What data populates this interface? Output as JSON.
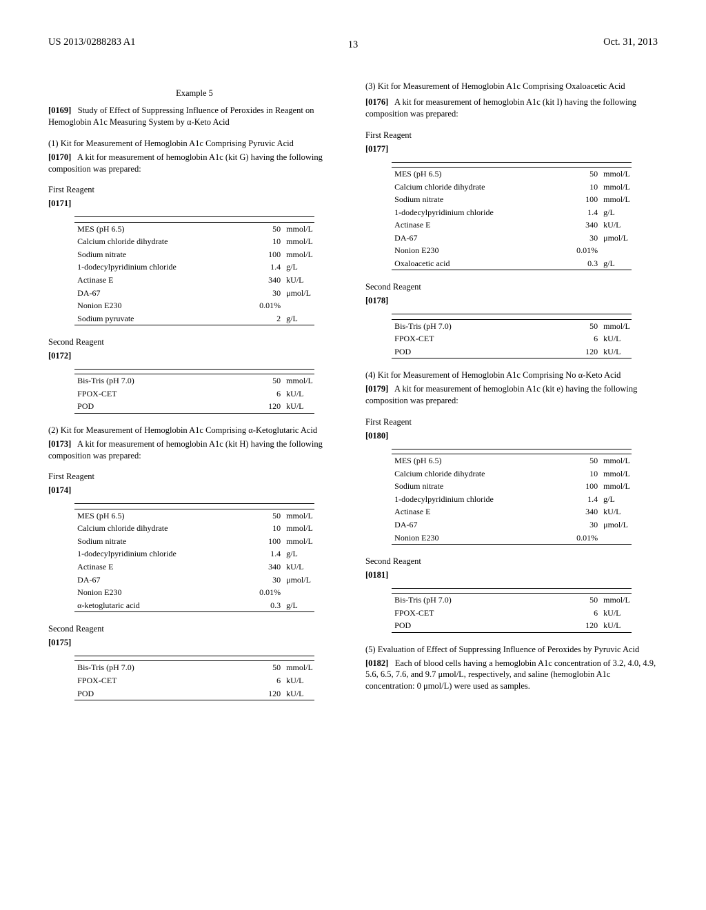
{
  "header": {
    "left": "US 2013/0288283 A1",
    "right": "Oct. 31, 2013",
    "page_number": "13"
  },
  "col_left": {
    "example_heading": "Example 5",
    "p0169_label": "[0169]",
    "p0169_text": "Study of Effect of Suppressing Influence of Peroxides in Reagent on Hemoglobin A1c Measuring System by α-Keto Acid",
    "sec1_heading": "(1) Kit for Measurement of Hemoglobin A1c Comprising Pyruvic Acid",
    "p0170_label": "[0170]",
    "p0170_text": "A kit for measurement of hemoglobin A1c (kit G) having the following composition was prepared:",
    "first_reagent_label": "First Reagent",
    "p0171_label": "[0171]",
    "tableG1": {
      "rows": [
        {
          "name": "MES (pH 6.5)",
          "value": "50",
          "unit": "mmol/L"
        },
        {
          "name": "Calcium chloride dihydrate",
          "value": "10",
          "unit": "mmol/L"
        },
        {
          "name": "Sodium nitrate",
          "value": "100",
          "unit": "mmol/L"
        },
        {
          "name": "1-dodecylpyridinium chloride",
          "value": "1.4",
          "unit": "g/L"
        },
        {
          "name": "Actinase E",
          "value": "340",
          "unit": "kU/L"
        },
        {
          "name": "DA-67",
          "value": "30",
          "unit": "μmol/L"
        },
        {
          "name": "Nonion E230",
          "value": "0.01%",
          "unit": ""
        },
        {
          "name": "Sodium pyruvate",
          "value": "2",
          "unit": "g/L"
        }
      ]
    },
    "second_reagent_label": "Second Reagent",
    "p0172_label": "[0172]",
    "tableG2": {
      "rows": [
        {
          "name": "Bis-Tris (pH 7.0)",
          "value": "50",
          "unit": "mmol/L"
        },
        {
          "name": "FPOX-CET",
          "value": "6",
          "unit": "kU/L"
        },
        {
          "name": "POD",
          "value": "120",
          "unit": "kU/L"
        }
      ]
    },
    "sec2_heading": "(2) Kit for Measurement of Hemoglobin A1c Comprising α-Ketoglutaric Acid",
    "p0173_label": "[0173]",
    "p0173_text": "A kit for measurement of hemoglobin A1c (kit H) having the following composition was prepared:",
    "p0174_label": "[0174]",
    "tableH1": {
      "rows": [
        {
          "name": "MES (pH 6.5)",
          "value": "50",
          "unit": "mmol/L"
        },
        {
          "name": "Calcium chloride dihydrate",
          "value": "10",
          "unit": "mmol/L"
        },
        {
          "name": "Sodium nitrate",
          "value": "100",
          "unit": "mmol/L"
        },
        {
          "name": "1-dodecylpyridinium chloride",
          "value": "1.4",
          "unit": "g/L"
        },
        {
          "name": "Actinase E",
          "value": "340",
          "unit": "kU/L"
        },
        {
          "name": "DA-67",
          "value": "30",
          "unit": "μmol/L"
        },
        {
          "name": "Nonion E230",
          "value": "0.01%",
          "unit": ""
        },
        {
          "name": "α-ketoglutaric acid",
          "value": "0.3",
          "unit": "g/L"
        }
      ]
    },
    "p0175_label": "[0175]",
    "tableH2": {
      "rows": [
        {
          "name": "Bis-Tris (pH 7.0)",
          "value": "50",
          "unit": "mmol/L"
        },
        {
          "name": "FPOX-CET",
          "value": "6",
          "unit": "kU/L"
        },
        {
          "name": "POD",
          "value": "120",
          "unit": "kU/L"
        }
      ]
    }
  },
  "col_right": {
    "sec3_heading": "(3) Kit for Measurement of Hemoglobin A1c Comprising Oxaloacetic Acid",
    "p0176_label": "[0176]",
    "p0176_text": "A kit for measurement of hemoglobin A1c (kit I) having the following composition was prepared:",
    "first_reagent_label": "First Reagent",
    "p0177_label": "[0177]",
    "tableI1": {
      "rows": [
        {
          "name": "MES (pH 6.5)",
          "value": "50",
          "unit": "mmol/L"
        },
        {
          "name": "Calcium chloride dihydrate",
          "value": "10",
          "unit": "mmol/L"
        },
        {
          "name": "Sodium nitrate",
          "value": "100",
          "unit": "mmol/L"
        },
        {
          "name": "1-dodecylpyridinium chloride",
          "value": "1.4",
          "unit": "g/L"
        },
        {
          "name": "Actinase E",
          "value": "340",
          "unit": "kU/L"
        },
        {
          "name": "DA-67",
          "value": "30",
          "unit": "μmol/L"
        },
        {
          "name": "Nonion E230",
          "value": "0.01%",
          "unit": ""
        },
        {
          "name": "Oxaloacetic acid",
          "value": "0.3",
          "unit": "g/L"
        }
      ]
    },
    "second_reagent_label": "Second Reagent",
    "p0178_label": "[0178]",
    "tableI2": {
      "rows": [
        {
          "name": "Bis-Tris (pH 7.0)",
          "value": "50",
          "unit": "mmol/L"
        },
        {
          "name": "FPOX-CET",
          "value": "6",
          "unit": "kU/L"
        },
        {
          "name": "POD",
          "value": "120",
          "unit": "kU/L"
        }
      ]
    },
    "sec4_heading": "(4) Kit for Measurement of Hemoglobin A1c Comprising No α-Keto Acid",
    "p0179_label": "[0179]",
    "p0179_text": "A kit for measurement of hemoglobin A1c (kit e) having the following composition was prepared:",
    "p0180_label": "[0180]",
    "tableE1": {
      "rows": [
        {
          "name": "MES (pH 6.5)",
          "value": "50",
          "unit": "mmol/L"
        },
        {
          "name": "Calcium chloride dihydrate",
          "value": "10",
          "unit": "mmol/L"
        },
        {
          "name": "Sodium nitrate",
          "value": "100",
          "unit": "mmol/L"
        },
        {
          "name": "1-dodecylpyridinium chloride",
          "value": "1.4",
          "unit": "g/L"
        },
        {
          "name": "Actinase E",
          "value": "340",
          "unit": "kU/L"
        },
        {
          "name": "DA-67",
          "value": "30",
          "unit": "μmol/L"
        },
        {
          "name": "Nonion E230",
          "value": "0.01%",
          "unit": ""
        }
      ]
    },
    "p0181_label": "[0181]",
    "tableE2": {
      "rows": [
        {
          "name": "Bis-Tris (pH 7.0)",
          "value": "50",
          "unit": "mmol/L"
        },
        {
          "name": "FPOX-CET",
          "value": "6",
          "unit": "kU/L"
        },
        {
          "name": "POD",
          "value": "120",
          "unit": "kU/L"
        }
      ]
    },
    "sec5_heading": "(5) Evaluation of Effect of Suppressing Influence of Peroxides by Pyruvic Acid",
    "p0182_label": "[0182]",
    "p0182_text": "Each of blood cells having a hemoglobin A1c concentration of 3.2, 4.0, 4.9, 5.6, 6.5, 7.6, and 9.7 μmol/L, respectively, and saline (hemoglobin A1c concentration: 0 μmol/L) were used as samples."
  }
}
